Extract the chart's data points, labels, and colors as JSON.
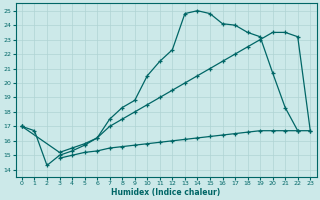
{
  "xlabel": "Humidex (Indice chaleur)",
  "bg_color": "#cce9e9",
  "grid_color": "#b0d4d4",
  "line_color": "#006666",
  "xlim": [
    -0.5,
    23.5
  ],
  "ylim": [
    13.5,
    25.5
  ],
  "xticks": [
    0,
    1,
    2,
    3,
    4,
    5,
    6,
    7,
    8,
    9,
    10,
    11,
    12,
    13,
    14,
    15,
    16,
    17,
    18,
    19,
    20,
    21,
    22,
    23
  ],
  "yticks": [
    14,
    15,
    16,
    17,
    18,
    19,
    20,
    21,
    22,
    23,
    24,
    25
  ],
  "line1_x": [
    0,
    1,
    2,
    3,
    4,
    5,
    6,
    7,
    8,
    9,
    10,
    11,
    12,
    13,
    14,
    15,
    16,
    17,
    18,
    19,
    20,
    21,
    22
  ],
  "line1_y": [
    17.0,
    16.7,
    14.3,
    15.0,
    15.3,
    15.7,
    16.2,
    17.5,
    18.3,
    18.8,
    20.5,
    21.5,
    22.3,
    24.8,
    25.0,
    24.8,
    24.1,
    24.0,
    23.5,
    23.2,
    20.7,
    18.3,
    16.7
  ],
  "line2_x": [
    0,
    3,
    4,
    5,
    6,
    7,
    8,
    9,
    10,
    11,
    12,
    13,
    14,
    15,
    16,
    17,
    18,
    19,
    20,
    21,
    22,
    23
  ],
  "line2_y": [
    17.0,
    15.2,
    15.5,
    15.8,
    16.2,
    17.0,
    17.5,
    18.0,
    18.5,
    19.0,
    19.5,
    20.0,
    20.5,
    21.0,
    21.5,
    22.0,
    22.5,
    23.0,
    23.5,
    23.5,
    23.2,
    16.7
  ],
  "line3_x": [
    0,
    1,
    2,
    3,
    4,
    5,
    6,
    7,
    8,
    9,
    10,
    11,
    12,
    13,
    14,
    15,
    16,
    17,
    18,
    19,
    20,
    21,
    22,
    23
  ],
  "line3_y": [
    17.0,
    null,
    null,
    14.8,
    15.0,
    15.2,
    15.3,
    15.5,
    15.6,
    15.7,
    15.8,
    15.9,
    16.0,
    16.1,
    16.2,
    16.3,
    16.4,
    16.5,
    16.6,
    16.7,
    16.7,
    16.7,
    16.7,
    16.7
  ]
}
